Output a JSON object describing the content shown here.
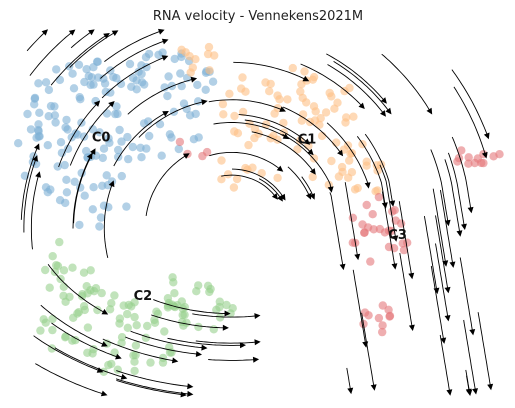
{
  "chart_data": {
    "type": "scatter",
    "title": "RNA velocity - Vennekens2021M",
    "xlabel": "",
    "ylabel": "",
    "axes_visible": false,
    "grid": false,
    "legend": "on-data cluster labels",
    "clusters": [
      {
        "name": "C0",
        "color": "#7fb0d6",
        "label_at": [
          -0.64,
          0.38
        ]
      },
      {
        "name": "C1",
        "color": "#fdbf86",
        "label_at": [
          0.2,
          0.37
        ]
      },
      {
        "name": "C2",
        "color": "#98d08d",
        "label_at": [
          -0.47,
          -0.5
        ]
      },
      {
        "name": "C3",
        "color": "#e5787b",
        "label_at": [
          0.57,
          -0.16
        ]
      }
    ],
    "stream_color": "#000000"
  }
}
